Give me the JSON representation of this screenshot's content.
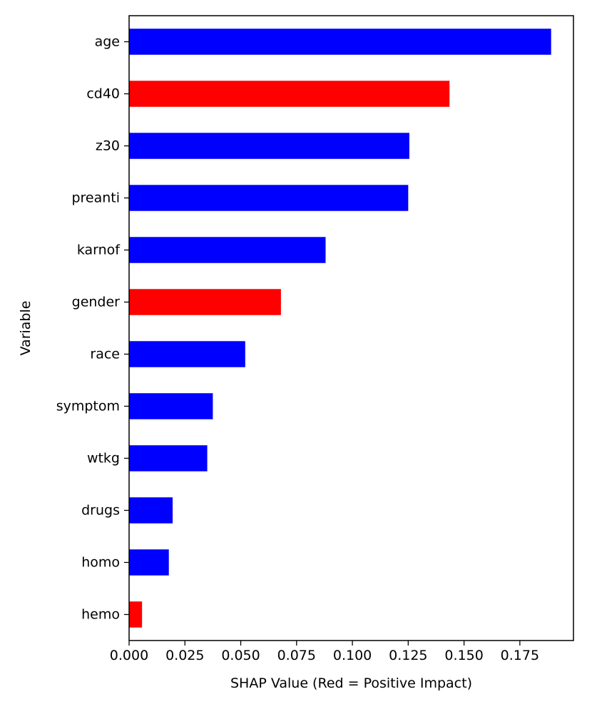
{
  "chart_data": {
    "type": "bar",
    "orientation": "horizontal",
    "categories": [
      "age",
      "cd40",
      "z30",
      "preanti",
      "karnof",
      "gender",
      "race",
      "symptom",
      "wtkg",
      "drugs",
      "homo",
      "hemo"
    ],
    "values": [
      0.189,
      0.1435,
      0.1255,
      0.125,
      0.088,
      0.068,
      0.052,
      0.0375,
      0.035,
      0.0195,
      0.0178,
      0.0058
    ],
    "impact": [
      "negative",
      "positive",
      "negative",
      "negative",
      "negative",
      "positive",
      "negative",
      "negative",
      "negative",
      "negative",
      "negative",
      "positive"
    ],
    "colors": {
      "positive": "#ff0000",
      "negative": "#0000ff"
    },
    "title": "",
    "xlabel": "SHAP Value (Red = Positive Impact)",
    "ylabel": "Variable",
    "xlim": [
      0,
      0.199
    ],
    "xticks": [
      0.0,
      0.025,
      0.05,
      0.075,
      0.1,
      0.125,
      0.15,
      0.175
    ],
    "xtick_labels": [
      "0.000",
      "0.025",
      "0.050",
      "0.075",
      "0.100",
      "0.125",
      "0.150",
      "0.175"
    ],
    "grid": false,
    "legend": "none"
  }
}
